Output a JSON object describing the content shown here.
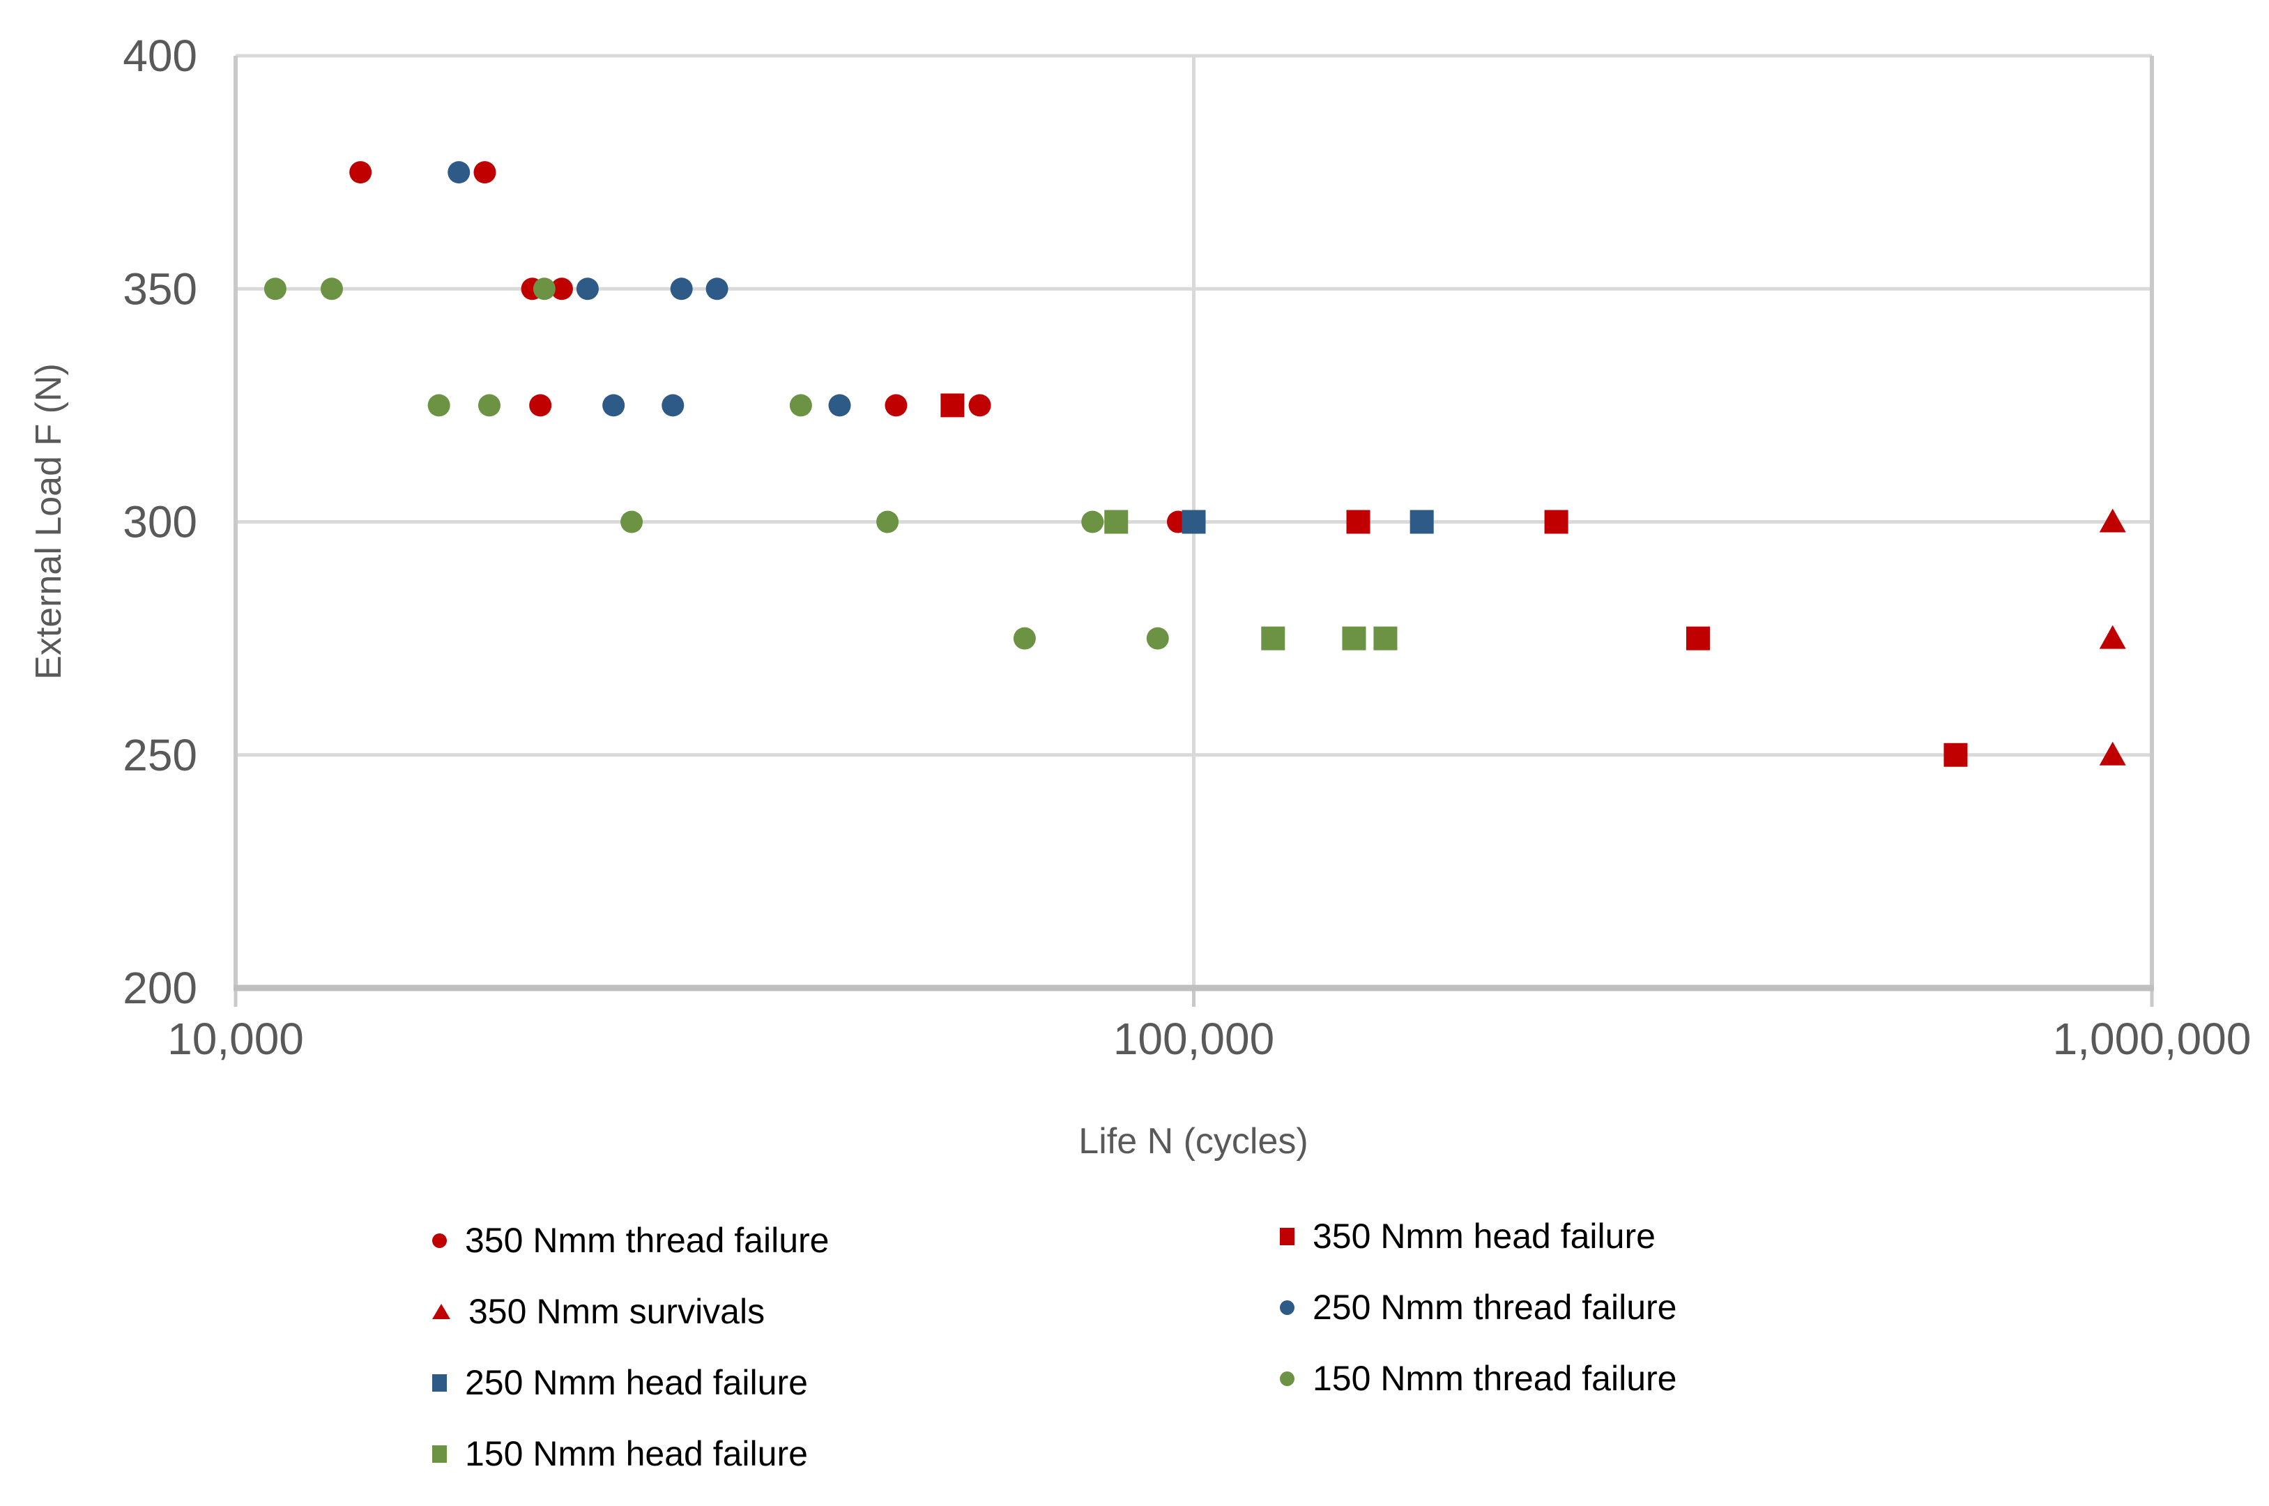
{
  "axes": {
    "x_title": "Life N (cycles)",
    "y_title": "External Load F (N)"
  },
  "chart_data": {
    "type": "scatter",
    "title": "",
    "xlabel": "Life N (cycles)",
    "ylabel": "External Load F (N)",
    "x_axis": {
      "scale": "log",
      "min": 10000,
      "max": 1000000,
      "ticks": [
        {
          "value": 10000,
          "label": "10,000",
          "grid": false
        },
        {
          "value": 100000,
          "label": "100,000",
          "grid": true
        },
        {
          "value": 1000000,
          "label": "1,000,000",
          "grid": false
        }
      ]
    },
    "y_axis": {
      "min": 200,
      "max": 400,
      "ticks": [
        {
          "value": 400,
          "label": "400"
        },
        {
          "value": 350,
          "label": "350"
        },
        {
          "value": 300,
          "label": "300"
        },
        {
          "value": 250,
          "label": "250"
        },
        {
          "value": 200,
          "label": "200"
        }
      ]
    },
    "style": {
      "grid_color": "#D9D9D9",
      "axis_line_color": "#C9C9C9",
      "bottom_axis_color": "#BFBFBF",
      "tick_label_color": "#595959",
      "tick_font_size": 64
    },
    "series": [
      {
        "name": "350 Nmm thread failure",
        "marker": "circle",
        "color": "#C00000",
        "points": [
          [
            13500,
            375
          ],
          [
            18200,
            375
          ],
          [
            20400,
            350
          ],
          [
            21900,
            350
          ],
          [
            20800,
            325
          ],
          [
            48900,
            325
          ],
          [
            59800,
            325
          ],
          [
            96300,
            300
          ]
        ]
      },
      {
        "name": "350 Nmm head failure",
        "marker": "square",
        "color": "#C00000",
        "points": [
          [
            56000,
            325
          ],
          [
            148500,
            300
          ],
          [
            239000,
            300
          ],
          [
            336000,
            275
          ],
          [
            624000,
            250
          ]
        ]
      },
      {
        "name": "350 Nmm survivals",
        "marker": "triangle",
        "color": "#C00000",
        "points": [
          [
            910000,
            300
          ],
          [
            910000,
            275
          ],
          [
            910000,
            250
          ]
        ]
      },
      {
        "name": "250 Nmm thread failure",
        "marker": "circle",
        "color": "#2D5A87",
        "points": [
          [
            17100,
            375
          ],
          [
            23300,
            350
          ],
          [
            29200,
            350
          ],
          [
            31800,
            350
          ],
          [
            24800,
            325
          ],
          [
            28600,
            325
          ],
          [
            42700,
            325
          ]
        ]
      },
      {
        "name": "250 Nmm head failure",
        "marker": "square",
        "color": "#2D5A87",
        "points": [
          [
            100000,
            300
          ],
          [
            173000,
            300
          ]
        ]
      },
      {
        "name": "150 Nmm thread failure",
        "marker": "circle",
        "color": "#6C9243",
        "points": [
          [
            11000,
            350
          ],
          [
            12600,
            350
          ],
          [
            21000,
            350
          ],
          [
            16300,
            325
          ],
          [
            18400,
            325
          ],
          [
            38900,
            325
          ],
          [
            25900,
            300
          ],
          [
            47900,
            300
          ],
          [
            78400,
            300
          ],
          [
            66600,
            275
          ],
          [
            91700,
            275
          ]
        ]
      },
      {
        "name": "150 Nmm head failure",
        "marker": "square",
        "color": "#6C9243",
        "points": [
          [
            83000,
            300
          ],
          [
            121000,
            275
          ],
          [
            147000,
            275
          ],
          [
            158500,
            275
          ]
        ]
      }
    ],
    "legend_position": "bottom"
  },
  "legend": {
    "column1": [
      {
        "label": "350 Nmm thread failure",
        "marker": "circle",
        "color": "#C00000"
      },
      {
        "label": "350 Nmm survivals",
        "marker": "triangle",
        "color": "#C00000"
      },
      {
        "label": "250 Nmm head failure",
        "marker": "square",
        "color": "#2D5A87"
      },
      {
        "label": "150 Nmm head failure",
        "marker": "square",
        "color": "#6C9243"
      }
    ],
    "column2": [
      {
        "label": "350 Nmm head failure",
        "marker": "square",
        "color": "#C00000"
      },
      {
        "label": "250 Nmm thread failure",
        "marker": "circle",
        "color": "#2D5A87"
      },
      {
        "label": "150 Nmm thread failure",
        "marker": "circle",
        "color": "#6C9243"
      }
    ]
  }
}
